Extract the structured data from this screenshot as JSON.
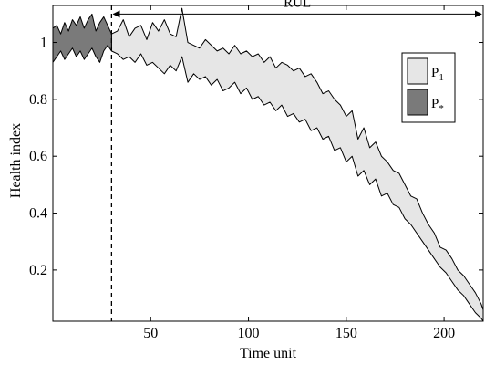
{
  "chart_data": {
    "type": "area",
    "title": "",
    "xlabel": "Time unit",
    "ylabel": "Health index",
    "xlim": [
      0,
      220
    ],
    "ylim": [
      0.02,
      1.13
    ],
    "xticks": [
      50,
      100,
      150,
      200
    ],
    "yticks": [
      0.2,
      0.4,
      0.6,
      0.8,
      1
    ],
    "grid": false,
    "legend": "top-right",
    "series": [
      {
        "name": "P_1",
        "label_main": "P",
        "label_sub": "1",
        "label_sub_position": "sub",
        "color": "#e6e6e6",
        "x": [
          30,
          33,
          36,
          39,
          42,
          45,
          48,
          51,
          54,
          57,
          60,
          63,
          66,
          69,
          72,
          75,
          78,
          81,
          84,
          87,
          90,
          93,
          96,
          99,
          102,
          105,
          108,
          111,
          114,
          117,
          120,
          123,
          126,
          129,
          132,
          135,
          138,
          141,
          144,
          147,
          150,
          153,
          156,
          159,
          162,
          165,
          168,
          171,
          174,
          177,
          180,
          183,
          186,
          189,
          192,
          195,
          198,
          201,
          204,
          207,
          210,
          213,
          216,
          219,
          220
        ],
        "upper": [
          1.03,
          1.04,
          1.08,
          1.02,
          1.05,
          1.06,
          1.01,
          1.07,
          1.04,
          1.08,
          1.03,
          1.02,
          1.12,
          1.0,
          0.99,
          0.98,
          1.01,
          0.99,
          0.97,
          0.98,
          0.96,
          0.99,
          0.96,
          0.97,
          0.95,
          0.96,
          0.93,
          0.95,
          0.91,
          0.93,
          0.92,
          0.9,
          0.91,
          0.88,
          0.89,
          0.86,
          0.82,
          0.83,
          0.8,
          0.78,
          0.74,
          0.76,
          0.66,
          0.7,
          0.63,
          0.65,
          0.6,
          0.58,
          0.55,
          0.54,
          0.5,
          0.46,
          0.45,
          0.4,
          0.36,
          0.33,
          0.28,
          0.27,
          0.24,
          0.2,
          0.18,
          0.15,
          0.12,
          0.08,
          0.06
        ],
        "lower": [
          0.97,
          0.96,
          0.94,
          0.95,
          0.93,
          0.96,
          0.92,
          0.93,
          0.91,
          0.89,
          0.92,
          0.9,
          0.95,
          0.86,
          0.89,
          0.87,
          0.88,
          0.85,
          0.87,
          0.83,
          0.84,
          0.86,
          0.82,
          0.84,
          0.8,
          0.81,
          0.78,
          0.79,
          0.76,
          0.78,
          0.74,
          0.75,
          0.72,
          0.73,
          0.69,
          0.7,
          0.66,
          0.67,
          0.62,
          0.63,
          0.58,
          0.6,
          0.53,
          0.55,
          0.5,
          0.52,
          0.46,
          0.47,
          0.43,
          0.42,
          0.38,
          0.36,
          0.33,
          0.3,
          0.27,
          0.24,
          0.21,
          0.19,
          0.16,
          0.13,
          0.11,
          0.08,
          0.05,
          0.03,
          0.02
        ]
      },
      {
        "name": "P_*",
        "label_main": "P",
        "label_sub": "*",
        "label_sub_position": "sub",
        "color": "#7a7a7a",
        "x": [
          0,
          2,
          4,
          6,
          8,
          10,
          12,
          14,
          16,
          18,
          20,
          22,
          24,
          26,
          28,
          30
        ],
        "upper": [
          1.05,
          1.06,
          1.03,
          1.07,
          1.04,
          1.08,
          1.06,
          1.09,
          1.05,
          1.08,
          1.1,
          1.04,
          1.07,
          1.09,
          1.06,
          1.03
        ],
        "lower": [
          0.93,
          0.95,
          0.97,
          0.94,
          0.96,
          0.98,
          0.95,
          0.97,
          0.94,
          0.96,
          0.98,
          0.95,
          0.93,
          0.97,
          0.99,
          0.97
        ]
      }
    ],
    "annotations": [
      {
        "type": "vline",
        "x": 30,
        "style": "dashed"
      },
      {
        "type": "double-arrow",
        "from_x": 30,
        "to_x": 220,
        "y": 1.1,
        "label": "RUL"
      }
    ]
  }
}
